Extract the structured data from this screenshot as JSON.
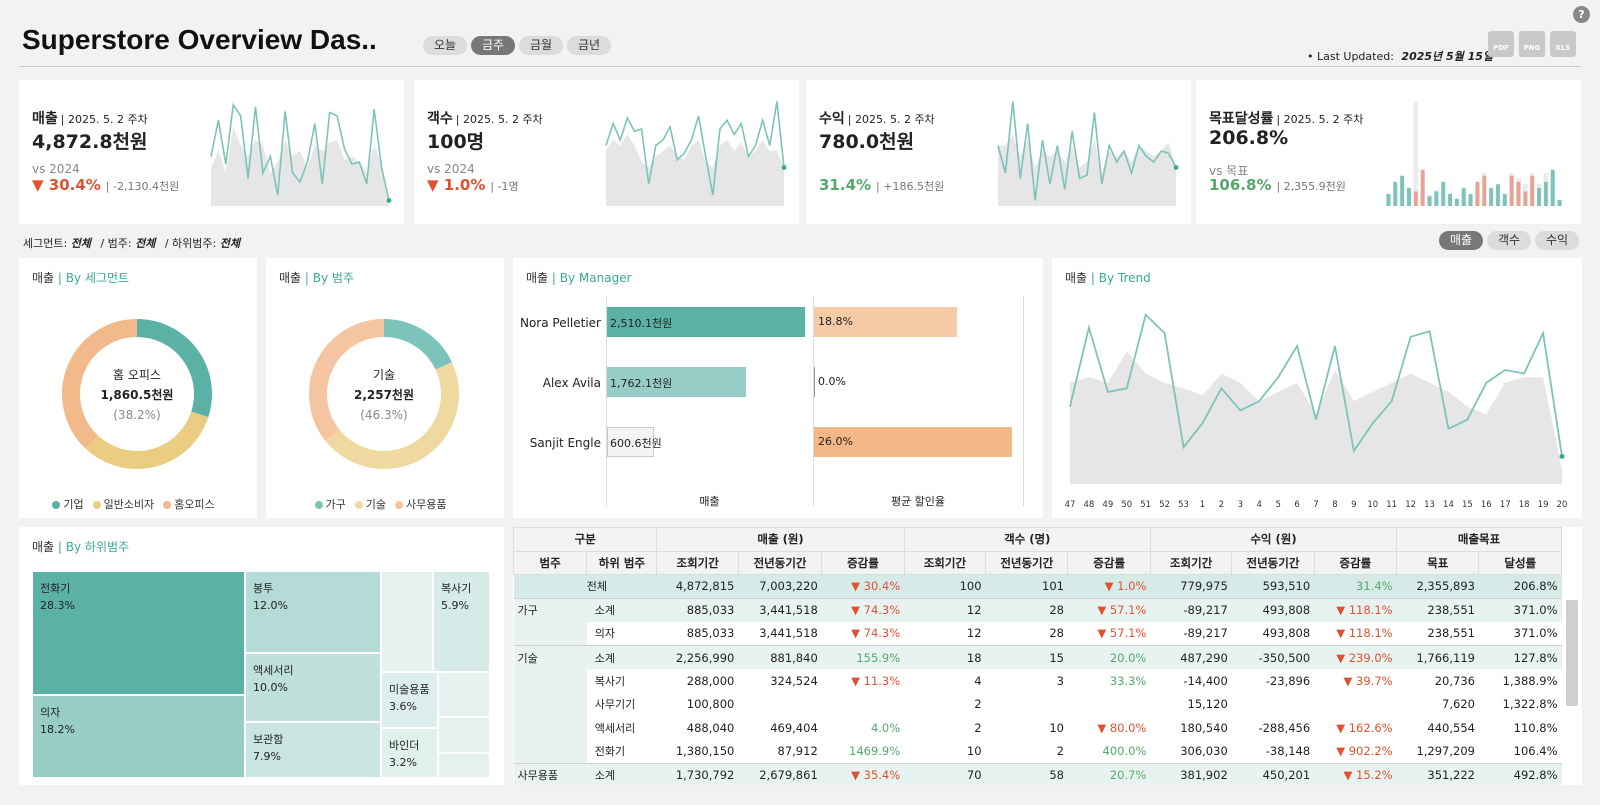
{
  "header": {
    "title": "Superstore Overview Das..",
    "period_tabs": [
      {
        "label": "오늘",
        "active": false
      },
      {
        "label": "금주",
        "active": true
      },
      {
        "label": "금월",
        "active": false
      },
      {
        "label": "금년",
        "active": false
      }
    ],
    "last_updated_label": "• Last Updated:",
    "last_updated_value": "2025년 5월 15일",
    "exports": [
      "PDF",
      "PNG",
      "XLS"
    ],
    "help": "?"
  },
  "kpis": [
    {
      "name": "매출",
      "period": "| 2025. 5. 2 주차",
      "value": "4,872.8천원",
      "vs_label": "vs 2024",
      "change": "▼ 30.4%",
      "change_detail": "| -2,130.4천원",
      "trend": "down",
      "spark": [
        0.45,
        0.78,
        0.38,
        0.92,
        0.82,
        0.25,
        0.9,
        0.3,
        0.45,
        0.1,
        0.86,
        0.3,
        0.22,
        0.4,
        0.75,
        0.2,
        0.85,
        0.82,
        0.52,
        0.38,
        0.4,
        0.2,
        0.88,
        0.35,
        0.05
      ],
      "spark_bg": [
        0.35,
        0.5,
        0.3,
        0.72,
        0.55,
        0.45,
        0.6,
        0.55,
        0.3,
        0.4,
        0.6,
        0.45,
        0.5,
        0.35,
        0.55,
        0.5,
        0.58,
        0.6,
        0.42,
        0.45,
        0.4,
        0.3,
        0.55,
        0.4,
        0.05
      ]
    },
    {
      "name": "객수",
      "period": "| 2025. 5. 2 주차",
      "value": "100명",
      "vs_label": "vs 2024",
      "change": "▼ 1.0%",
      "change_detail": "| -1명",
      "trend": "down",
      "spark": [
        0.55,
        0.75,
        0.6,
        0.8,
        0.68,
        0.7,
        0.2,
        0.55,
        0.6,
        0.72,
        0.42,
        0.48,
        0.6,
        0.82,
        0.45,
        0.1,
        0.7,
        0.78,
        0.65,
        0.75,
        0.45,
        0.55,
        0.78,
        0.55,
        0.95,
        0.35
      ],
      "spark_bg": [
        0.5,
        0.6,
        0.55,
        0.65,
        0.55,
        0.4,
        0.35,
        0.45,
        0.5,
        0.55,
        0.45,
        0.42,
        0.55,
        0.6,
        0.4,
        0.35,
        0.55,
        0.6,
        0.5,
        0.58,
        0.45,
        0.5,
        0.6,
        0.5,
        0.5,
        0.35
      ]
    },
    {
      "name": "수익",
      "period": "| 2025. 5. 2 주차",
      "value": "780.0천원",
      "vs_label": "",
      "change": "31.4%",
      "change_detail": "| +186.5천원",
      "trend": "up",
      "spark": [
        0.55,
        0.3,
        0.95,
        0.25,
        0.75,
        0.05,
        0.6,
        0.2,
        0.55,
        0.15,
        0.68,
        0.25,
        0.28,
        0.85,
        0.2,
        0.55,
        0.4,
        0.5,
        0.3,
        0.55,
        0.45,
        0.4,
        0.5,
        0.48,
        0.35
      ],
      "spark_bg": [
        0.55,
        0.55,
        0.65,
        0.45,
        0.6,
        0.35,
        0.5,
        0.45,
        0.5,
        0.4,
        0.55,
        0.35,
        0.4,
        0.6,
        0.3,
        0.5,
        0.45,
        0.5,
        0.4,
        0.55,
        0.5,
        0.45,
        0.5,
        0.58,
        0.35
      ]
    },
    {
      "name": "목표달성률",
      "period": "| 2025. 5. 2 주차",
      "value": "206.8%",
      "vs_label": "vs 목표",
      "change": "106.8%",
      "change_detail": "| 2,355.9천원",
      "trend": "up",
      "bars": [
        0.1,
        0.2,
        0.25,
        0.15,
        0.12,
        0.3,
        0.08,
        0.12,
        0.2,
        0.1,
        0.06,
        0.15,
        0.1,
        0.2,
        0.25,
        0.15,
        0.18,
        0.1,
        0.25,
        0.2,
        0.12,
        0.25,
        0.15,
        0.2,
        0.3,
        0.05
      ],
      "bars_bg": [
        0.1,
        0.2,
        0.25,
        0.15,
        0.95,
        0.3,
        0.1,
        0.15,
        0.2,
        0.1,
        0.06,
        0.15,
        0.1,
        0.2,
        0.3,
        0.15,
        0.18,
        0.1,
        0.3,
        0.25,
        0.2,
        0.3,
        0.2,
        0.3,
        0.3,
        0.05
      ],
      "bars_red": [
        false,
        false,
        false,
        false,
        true,
        true,
        false,
        false,
        false,
        false,
        false,
        false,
        false,
        true,
        true,
        false,
        false,
        false,
        true,
        true,
        true,
        true,
        false,
        false,
        false,
        false
      ]
    }
  ],
  "filters": {
    "segment_label": "세그먼트:",
    "segment_value": "전체",
    "category_label": "/ 범주:",
    "category_value": "전체",
    "subcategory_label": "/ 하위범주:",
    "subcategory_value": "전체",
    "metric_tabs": [
      {
        "label": "매출",
        "active": true
      },
      {
        "label": "객수",
        "active": false
      },
      {
        "label": "수익",
        "active": false
      }
    ]
  },
  "segment_panel": {
    "title": "매출",
    "subtitle": "| By 세그먼트",
    "center_label": "홈 오피스",
    "center_value": "1,860.5천원",
    "center_pct": "(38.2%)",
    "slices": [
      {
        "name": "기업",
        "value": 0.3,
        "color": "#5bb1a6"
      },
      {
        "name": "일반소비자",
        "value": 0.32,
        "color": "#ebcd82"
      },
      {
        "name": "홈오피스",
        "value": 0.38,
        "color": "#f2b98a"
      }
    ]
  },
  "category_panel": {
    "title": "매출",
    "subtitle": "| By 범주",
    "center_label": "기술",
    "center_value": "2,257천원",
    "center_pct": "(46.3%)",
    "slices": [
      {
        "name": "가구",
        "value": 0.18,
        "color": "#7cc4ba"
      },
      {
        "name": "기술",
        "value": 0.463,
        "color": "#efd9a0"
      },
      {
        "name": "사무용품",
        "value": 0.357,
        "color": "#f5c4a0"
      }
    ]
  },
  "manager_panel": {
    "title": "매출",
    "subtitle": "| By Manager",
    "axis_sales": "매출",
    "axis_discount": "평균 할인율",
    "managers": [
      {
        "name": "Nora Pelletier",
        "sales": 2510.1,
        "sales_label": "2,510.1천원",
        "discount": 18.8,
        "discount_label": "18.8%",
        "sales_color": "#5bb1a6",
        "disc_color": "#f5caa6"
      },
      {
        "name": "Alex Avila",
        "sales": 1762.1,
        "sales_label": "1,762.1천원",
        "discount": 0.0,
        "discount_label": "0.0%",
        "sales_color": "#98ccc6",
        "disc_color": "#f5caa6"
      },
      {
        "name": "Sanjit Engle",
        "sales": 600.6,
        "sales_label": "600.6천원",
        "discount": 26.0,
        "discount_label": "26.0%",
        "sales_color": "#f4f4f4",
        "disc_color": "#f4b887"
      }
    ]
  },
  "trend_panel": {
    "title": "매출",
    "subtitle": "| By Trend",
    "x": [
      "47",
      "48",
      "49",
      "50",
      "51",
      "52",
      "53",
      "1",
      "2",
      "3",
      "4",
      "5",
      "6",
      "7",
      "8",
      "9",
      "10",
      "11",
      "12",
      "13",
      "14",
      "15",
      "16",
      "17",
      "18",
      "19",
      "20"
    ],
    "line": [
      0.42,
      0.85,
      0.5,
      0.52,
      0.92,
      0.82,
      0.2,
      0.33,
      0.52,
      0.4,
      0.45,
      0.58,
      0.75,
      0.35,
      0.75,
      0.18,
      0.33,
      0.45,
      0.8,
      0.83,
      0.3,
      0.35,
      0.55,
      0.62,
      0.6,
      0.82,
      0.15
    ],
    "area": [
      0.55,
      0.58,
      0.55,
      0.72,
      0.6,
      0.55,
      0.52,
      0.48,
      0.6,
      0.55,
      0.45,
      0.5,
      0.55,
      0.38,
      0.62,
      0.45,
      0.5,
      0.55,
      0.6,
      0.55,
      0.5,
      0.42,
      0.38,
      0.55,
      0.58,
      0.58,
      0.08
    ]
  },
  "treemap_panel": {
    "title": "매출",
    "subtitle": "| By 하위범주",
    "cells": [
      {
        "name": "전화기",
        "pct": "28.3%",
        "color": "#5bb1a6"
      },
      {
        "name": "의자",
        "pct": "18.2%",
        "color": "#98ccc6"
      },
      {
        "name": "봉투",
        "pct": "12.0%",
        "color": "#b5dbd6"
      },
      {
        "name": "액세서리",
        "pct": "10.0%",
        "color": "#bfe0db"
      },
      {
        "name": "보관함",
        "pct": "7.9%",
        "color": "#c9e5e1"
      },
      {
        "name": "복사기",
        "pct": "5.9%",
        "color": "#d6ebe8"
      },
      {
        "name": "미술용품",
        "pct": "3.6%",
        "color": "#ddefec"
      },
      {
        "name": "바인더",
        "pct": "3.2%",
        "color": "#e0f0ed"
      }
    ]
  },
  "table": {
    "group_headers": [
      "구분",
      "매출 (원)",
      "객수 (명)",
      "수익 (원)",
      "매출목표"
    ],
    "sub_headers": [
      "범주",
      "하위 범주",
      "조회기간",
      "전년동기간",
      "증감률",
      "조회기간",
      "전년동기간",
      "증감률",
      "조회기간",
      "전년동기간",
      "증감률",
      "목표",
      "달성률"
    ],
    "rows": [
      {
        "cat": "",
        "sub": "전체",
        "type": "total",
        "v": [
          "4,872,815",
          "7,003,220",
          "▼ 30.4%",
          "100",
          "101",
          "▼ 1.0%",
          "779,975",
          "593,510",
          "31.4%",
          "2,355,893",
          "206.8%"
        ]
      },
      {
        "cat": "가구",
        "sub": "소계",
        "type": "sub",
        "v": [
          "885,033",
          "3,441,518",
          "▼ 74.3%",
          "12",
          "28",
          "▼ 57.1%",
          "-89,217",
          "493,808",
          "▼ 118.1%",
          "238,551",
          "371.0%"
        ]
      },
      {
        "cat": "",
        "sub": "의자",
        "type": "item",
        "v": [
          "885,033",
          "3,441,518",
          "▼ 74.3%",
          "12",
          "28",
          "▼ 57.1%",
          "-89,217",
          "493,808",
          "▼ 118.1%",
          "238,551",
          "371.0%"
        ]
      },
      {
        "cat": "기술",
        "sub": "소계",
        "type": "sub",
        "v": [
          "2,256,990",
          "881,840",
          "155.9%",
          "18",
          "15",
          "20.0%",
          "487,290",
          "-350,500",
          "▼ 239.0%",
          "1,766,119",
          "127.8%"
        ]
      },
      {
        "cat": "",
        "sub": "복사기",
        "type": "item",
        "v": [
          "288,000",
          "324,524",
          "▼ 11.3%",
          "4",
          "3",
          "33.3%",
          "-14,400",
          "-23,896",
          "▼ 39.7%",
          "20,736",
          "1,388.9%"
        ]
      },
      {
        "cat": "",
        "sub": "사무기기",
        "type": "item",
        "v": [
          "100,800",
          "",
          "",
          "2",
          "",
          "",
          "15,120",
          "",
          "",
          "7,620",
          "1,322.8%"
        ]
      },
      {
        "cat": "",
        "sub": "액세서리",
        "type": "item",
        "v": [
          "488,040",
          "469,404",
          "4.0%",
          "2",
          "10",
          "▼ 80.0%",
          "180,540",
          "-288,456",
          "▼ 162.6%",
          "440,554",
          "110.8%"
        ]
      },
      {
        "cat": "",
        "sub": "전화기",
        "type": "item",
        "v": [
          "1,380,150",
          "87,912",
          "1469.9%",
          "10",
          "2",
          "400.0%",
          "306,030",
          "-38,148",
          "▼ 902.2%",
          "1,297,209",
          "106.4%"
        ]
      },
      {
        "cat": "사무용품",
        "sub": "소계",
        "type": "sub",
        "v": [
          "1,730,792",
          "2,679,861",
          "▼ 35.4%",
          "70",
          "58",
          "20.7%",
          "381,902",
          "450,201",
          "▼ 15.2%",
          "351,222",
          "492.8%"
        ]
      }
    ]
  },
  "colors": {
    "teal": "#5bb1a6",
    "red": "#e0522f",
    "green": "#55a86a",
    "spark_area": "#e6e6e6",
    "bar_red": "#eaa294",
    "bar_teal": "#7cc4ba"
  }
}
